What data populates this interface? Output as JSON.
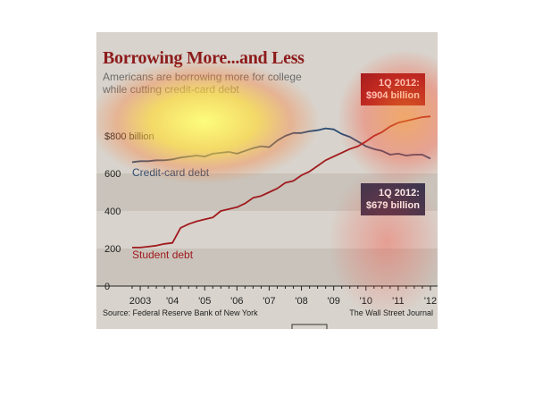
{
  "title": "Borrowing More...and Less",
  "subtitle": "Americans are borrowing more for college while cutting credit-card debt",
  "source": "Source: Federal Reserve Bank of New York",
  "credit": "The Wall Street Journal",
  "colors": {
    "student": "#a01a1d",
    "credit_card": "#2c4c72",
    "title": "#8d1b1b",
    "background": "#d8d3cc",
    "band": "#c9c3bb"
  },
  "chart_data": {
    "type": "line",
    "title": "Borrowing More...and Less",
    "xlabel": "",
    "ylabel": "",
    "ylim": [
      0,
      900
    ],
    "xlim": [
      2003,
      2012.25
    ],
    "grid": false,
    "x_ticks": [
      {
        "value": 2003.25,
        "label": "2003"
      },
      {
        "value": 2004.25,
        "label": "'04"
      },
      {
        "value": 2005.25,
        "label": "'05"
      },
      {
        "value": 2006.25,
        "label": "'06"
      },
      {
        "value": 2007.25,
        "label": "'07"
      },
      {
        "value": 2008.25,
        "label": "'08"
      },
      {
        "value": 2009.25,
        "label": "'09"
      },
      {
        "value": 2010.25,
        "label": "'10"
      },
      {
        "value": 2011.25,
        "label": "'11"
      },
      {
        "value": 2012.25,
        "label": "'12"
      }
    ],
    "y_ticks": [
      {
        "value": 0,
        "label": "0"
      },
      {
        "value": 200,
        "label": "200"
      },
      {
        "value": 400,
        "label": "400"
      },
      {
        "value": 600,
        "label": "600"
      },
      {
        "value": 800,
        "label": "$800 billion"
      }
    ],
    "series": [
      {
        "name": "Credit-card debt",
        "x": [
          2003.0,
          2003.25,
          2003.5,
          2003.75,
          2004.0,
          2004.25,
          2004.5,
          2004.75,
          2005.0,
          2005.25,
          2005.5,
          2005.75,
          2006.0,
          2006.25,
          2006.5,
          2006.75,
          2007.0,
          2007.25,
          2007.5,
          2007.75,
          2008.0,
          2008.25,
          2008.5,
          2008.75,
          2009.0,
          2009.25,
          2009.5,
          2009.75,
          2010.0,
          2010.25,
          2010.5,
          2010.75,
          2011.0,
          2011.25,
          2011.5,
          2011.75,
          2012.0,
          2012.25
        ],
        "values": [
          660,
          665,
          665,
          670,
          670,
          675,
          685,
          690,
          695,
          690,
          705,
          710,
          715,
          705,
          720,
          735,
          745,
          740,
          775,
          800,
          815,
          815,
          825,
          830,
          840,
          835,
          810,
          795,
          770,
          745,
          730,
          720,
          700,
          705,
          695,
          700,
          700,
          679
        ]
      },
      {
        "name": "Student debt",
        "x": [
          2003.0,
          2003.25,
          2003.5,
          2003.75,
          2004.0,
          2004.25,
          2004.5,
          2004.75,
          2005.0,
          2005.25,
          2005.5,
          2005.75,
          2006.0,
          2006.25,
          2006.5,
          2006.75,
          2007.0,
          2007.25,
          2007.5,
          2007.75,
          2008.0,
          2008.25,
          2008.5,
          2008.75,
          2009.0,
          2009.25,
          2009.5,
          2009.75,
          2010.0,
          2010.25,
          2010.5,
          2010.75,
          2011.0,
          2011.25,
          2011.5,
          2011.75,
          2012.0,
          2012.25
        ],
        "values": [
          205,
          205,
          210,
          215,
          225,
          230,
          310,
          330,
          345,
          355,
          365,
          400,
          410,
          420,
          440,
          470,
          480,
          500,
          520,
          550,
          560,
          590,
          610,
          640,
          670,
          690,
          710,
          730,
          745,
          770,
          800,
          820,
          850,
          870,
          880,
          890,
          900,
          904
        ]
      }
    ],
    "annotations": [
      {
        "text_line1": "1Q 2012:",
        "text_line2": "$904 billion",
        "series": "Student debt",
        "x": 2012.25,
        "y": 904
      },
      {
        "text_line1": "1Q 2012:",
        "text_line2": "$679 billion",
        "series": "Credit-card debt",
        "x": 2012.25,
        "y": 679
      }
    ]
  }
}
